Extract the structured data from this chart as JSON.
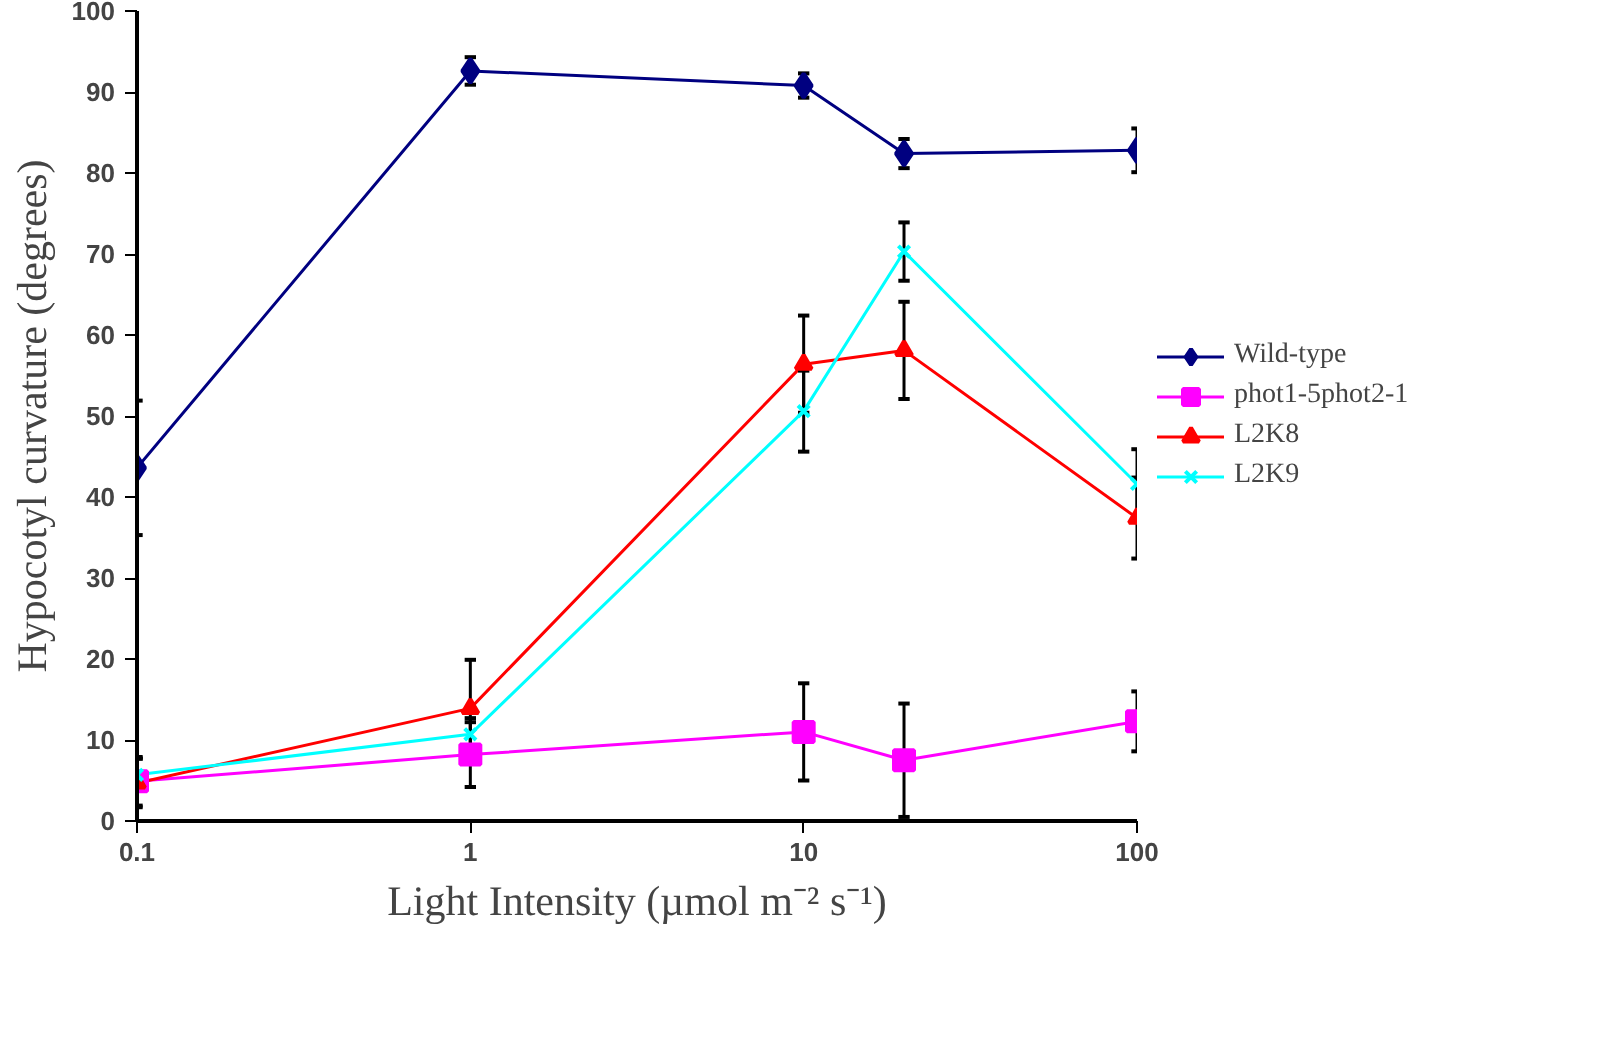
{
  "chart_data": {
    "type": "line",
    "xlabel": "Light Intensity (µmol m⁻² s⁻¹)",
    "ylabel": "Hypocotyl curvature (degrees)",
    "x": [
      0.1,
      1,
      10,
      20,
      100
    ],
    "log": "x",
    "xlim": [
      0.1,
      100
    ],
    "ylim": [
      0,
      100
    ],
    "xticks": [
      0.1,
      1,
      10,
      100
    ],
    "yticks": [
      0,
      10,
      20,
      30,
      40,
      50,
      60,
      70,
      80,
      90,
      100
    ],
    "grid": false,
    "legend": "right",
    "line_style": "solid",
    "series": [
      {
        "name": "Wild-type",
        "color": "#000080",
        "marker": "diamond",
        "values": [
          43.6,
          92.6,
          90.8,
          82.4,
          82.8
        ],
        "errors": [
          8.3,
          1.7,
          1.5,
          1.8,
          2.7
        ]
      },
      {
        "name": "phot1-5phot2-1",
        "color": "#ff00ff",
        "marker": "square",
        "values": [
          4.9,
          8.2,
          11,
          7.5,
          12.3
        ],
        "errors": [
          3,
          4,
          6,
          7,
          3.7
        ]
      },
      {
        "name": "L2K8",
        "color": "#ff0000",
        "marker": "triangle",
        "values": [
          4.7,
          13.9,
          56.4,
          58.1,
          37.4
        ],
        "errors": [
          3,
          6,
          6,
          6,
          5
        ]
      },
      {
        "name": "L2K9",
        "color": "#00ffff",
        "marker": "cross",
        "values": [
          5.7,
          10.7,
          50.6,
          70.3,
          41.6
        ],
        "errors": [
          2,
          2,
          5,
          3.6,
          4.3
        ]
      }
    ]
  }
}
